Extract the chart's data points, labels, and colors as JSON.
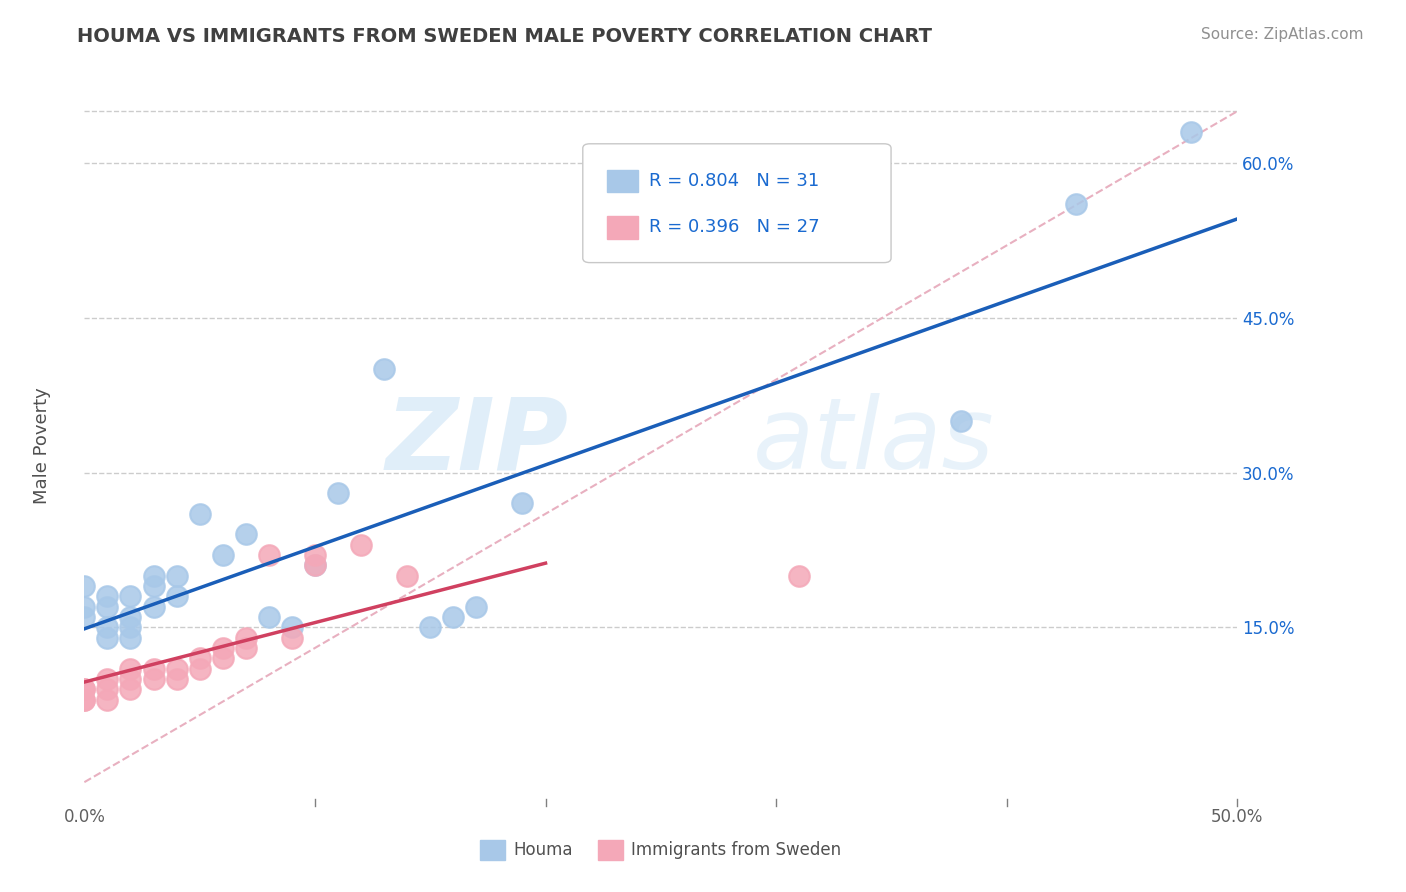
{
  "title": "HOUMA VS IMMIGRANTS FROM SWEDEN MALE POVERTY CORRELATION CHART",
  "source": "Source: ZipAtlas.com",
  "ylabel": "Male Poverty",
  "xlim": [
    0.0,
    0.5
  ],
  "ylim": [
    -0.02,
    0.68
  ],
  "y_ticks": [
    0.15,
    0.3,
    0.45,
    0.6
  ],
  "y_tick_labels": [
    "15.0%",
    "30.0%",
    "45.0%",
    "60.0%"
  ],
  "x_ticks": [
    0.0,
    0.1,
    0.2,
    0.3,
    0.4,
    0.5
  ],
  "x_tick_labels": [
    "0.0%",
    "",
    "",
    "",
    "",
    "50.0%"
  ],
  "houma_color": "#a8c8e8",
  "sweden_color": "#f4a8b8",
  "houma_line_color": "#1a5eb8",
  "sweden_line_color": "#d04060",
  "diag_color": "#e8b0c0",
  "legend_text_color": "#1a6ad0",
  "title_color": "#404040",
  "watermark_text": "ZIPatlas",
  "legend_R1": "R = 0.804",
  "legend_N1": "N = 31",
  "legend_R2": "R = 0.396",
  "legend_N2": "N = 27",
  "houma_x": [
    0.0,
    0.0,
    0.0,
    0.01,
    0.01,
    0.01,
    0.01,
    0.02,
    0.02,
    0.02,
    0.02,
    0.03,
    0.03,
    0.03,
    0.04,
    0.04,
    0.05,
    0.06,
    0.07,
    0.08,
    0.09,
    0.1,
    0.11,
    0.13,
    0.15,
    0.16,
    0.17,
    0.19,
    0.38,
    0.43,
    0.48
  ],
  "houma_y": [
    0.19,
    0.17,
    0.16,
    0.18,
    0.17,
    0.15,
    0.14,
    0.18,
    0.16,
    0.15,
    0.14,
    0.2,
    0.19,
    0.17,
    0.2,
    0.18,
    0.26,
    0.22,
    0.24,
    0.16,
    0.15,
    0.21,
    0.28,
    0.4,
    0.15,
    0.16,
    0.17,
    0.27,
    0.35,
    0.56,
    0.63
  ],
  "sweden_x": [
    0.0,
    0.0,
    0.0,
    0.0,
    0.01,
    0.01,
    0.01,
    0.02,
    0.02,
    0.02,
    0.03,
    0.03,
    0.04,
    0.04,
    0.05,
    0.05,
    0.06,
    0.06,
    0.07,
    0.07,
    0.08,
    0.09,
    0.1,
    0.1,
    0.12,
    0.14,
    0.31
  ],
  "sweden_y": [
    0.09,
    0.09,
    0.08,
    0.08,
    0.1,
    0.09,
    0.08,
    0.11,
    0.1,
    0.09,
    0.11,
    0.1,
    0.11,
    0.1,
    0.12,
    0.11,
    0.13,
    0.12,
    0.14,
    0.13,
    0.22,
    0.14,
    0.22,
    0.21,
    0.23,
    0.2,
    0.2
  ],
  "background_color": "#ffffff",
  "grid_color": "#cccccc",
  "marker_size": 220,
  "legend_label_houma": "Houma",
  "legend_label_sweden": "Immigrants from Sweden"
}
